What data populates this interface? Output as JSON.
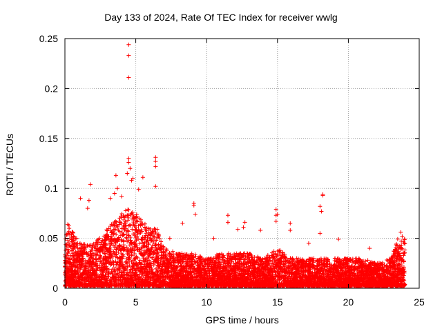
{
  "chart_data": {
    "type": "scatter",
    "title": "Day 133 of 2024, Rate Of TEC Index for receiver wwlg",
    "xlabel": "GPS time / hours",
    "ylabel": "ROTI / TECUs",
    "xlim": [
      0,
      25
    ],
    "ylim": [
      0,
      0.25
    ],
    "xticks": [
      0,
      5,
      10,
      15,
      20,
      25
    ],
    "xtick_labels": [
      "0",
      "5",
      "10",
      "15",
      "20",
      "25"
    ],
    "yticks": [
      0,
      0.05,
      0.1,
      0.15,
      0.2,
      0.25
    ],
    "ytick_labels": [
      "0",
      "0.05",
      "0.1",
      "0.15",
      "0.2",
      "0.25"
    ],
    "grid": true,
    "marker": "+",
    "marker_color": "#ff0000",
    "series": [
      {
        "name": "ROTI",
        "x_start": 0.0,
        "x_end": 24.0,
        "baseline_min": 0.002,
        "envelope_hours": [
          0,
          0.3,
          1,
          2,
          3,
          4,
          4.5,
          5,
          6,
          6.5,
          7,
          8,
          9,
          10,
          11,
          12,
          13,
          14,
          15,
          16,
          17,
          18,
          19,
          20,
          21,
          22,
          23,
          23.5,
          24
        ],
        "envelope_roti": [
          0.05,
          0.065,
          0.045,
          0.045,
          0.06,
          0.075,
          0.08,
          0.075,
          0.06,
          0.06,
          0.04,
          0.035,
          0.035,
          0.03,
          0.035,
          0.035,
          0.035,
          0.03,
          0.04,
          0.03,
          0.03,
          0.03,
          0.03,
          0.03,
          0.03,
          0.025,
          0.03,
          0.05,
          0.05
        ],
        "outliers": [
          {
            "x": 4.5,
            "y": 0.244
          },
          {
            "x": 4.5,
            "y": 0.233
          },
          {
            "x": 4.5,
            "y": 0.211
          },
          {
            "x": 4.5,
            "y": 0.13
          },
          {
            "x": 4.5,
            "y": 0.126
          },
          {
            "x": 4.6,
            "y": 0.12
          },
          {
            "x": 4.4,
            "y": 0.115
          },
          {
            "x": 4.7,
            "y": 0.108
          },
          {
            "x": 4.8,
            "y": 0.11
          },
          {
            "x": 6.4,
            "y": 0.131
          },
          {
            "x": 6.4,
            "y": 0.127
          },
          {
            "x": 6.4,
            "y": 0.122
          },
          {
            "x": 6.4,
            "y": 0.102
          },
          {
            "x": 5.5,
            "y": 0.111
          },
          {
            "x": 5.2,
            "y": 0.099
          },
          {
            "x": 3.6,
            "y": 0.113
          },
          {
            "x": 3.7,
            "y": 0.1
          },
          {
            "x": 1.8,
            "y": 0.104
          },
          {
            "x": 1.1,
            "y": 0.09
          },
          {
            "x": 1.7,
            "y": 0.088
          },
          {
            "x": 1.6,
            "y": 0.08
          },
          {
            "x": 3.2,
            "y": 0.09
          },
          {
            "x": 3.5,
            "y": 0.095
          },
          {
            "x": 4.0,
            "y": 0.092
          },
          {
            "x": 9.1,
            "y": 0.085
          },
          {
            "x": 9.1,
            "y": 0.083
          },
          {
            "x": 9.2,
            "y": 0.074
          },
          {
            "x": 11.5,
            "y": 0.073
          },
          {
            "x": 11.5,
            "y": 0.066
          },
          {
            "x": 12.7,
            "y": 0.066
          },
          {
            "x": 12.6,
            "y": 0.061
          },
          {
            "x": 12.2,
            "y": 0.059
          },
          {
            "x": 13.8,
            "y": 0.058
          },
          {
            "x": 14.9,
            "y": 0.079
          },
          {
            "x": 14.9,
            "y": 0.073
          },
          {
            "x": 15.0,
            "y": 0.074
          },
          {
            "x": 14.9,
            "y": 0.067
          },
          {
            "x": 15.9,
            "y": 0.065
          },
          {
            "x": 15.9,
            "y": 0.058
          },
          {
            "x": 18.2,
            "y": 0.094
          },
          {
            "x": 18.2,
            "y": 0.093
          },
          {
            "x": 18.0,
            "y": 0.082
          },
          {
            "x": 18.1,
            "y": 0.077
          },
          {
            "x": 18.0,
            "y": 0.055
          },
          {
            "x": 19.3,
            "y": 0.049
          },
          {
            "x": 8.3,
            "y": 0.065
          },
          {
            "x": 7.4,
            "y": 0.05
          },
          {
            "x": 10.5,
            "y": 0.05
          },
          {
            "x": 23.7,
            "y": 0.056
          },
          {
            "x": 23.8,
            "y": 0.052
          },
          {
            "x": 0.2,
            "y": 0.064
          },
          {
            "x": 0.3,
            "y": 0.06
          },
          {
            "x": 17.2,
            "y": 0.045
          },
          {
            "x": 21.5,
            "y": 0.04
          }
        ]
      }
    ]
  }
}
